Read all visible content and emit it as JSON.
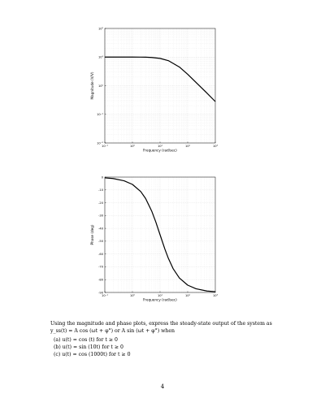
{
  "chart_data": [
    {
      "type": "line",
      "title": "",
      "xlabel": "Frequency (rad/sec)",
      "ylabel": "Magnitude (V/V)",
      "xscale": "log",
      "yscale": "log",
      "xlim": [
        0.1,
        1000
      ],
      "ylim": [
        0.01,
        100
      ],
      "x_ticks": [
        "10⁻¹",
        "10⁰",
        "10¹",
        "10²",
        "10³"
      ],
      "y_ticks": [
        "10⁻²",
        "10⁻¹",
        "10⁰",
        "10¹",
        "10²"
      ],
      "grid": true,
      "series": [
        {
          "x": [
            0.1,
            0.5,
            1,
            2,
            3,
            5,
            10,
            20,
            50,
            100,
            200,
            500,
            1000
          ],
          "y": [
            10,
            10,
            10,
            9.95,
            9.9,
            9.7,
            9.0,
            7.5,
            4.5,
            2.5,
            1.3,
            0.55,
            0.28
          ]
        }
      ],
      "color": "#000000"
    },
    {
      "type": "line",
      "title": "",
      "xlabel": "Frequency (rad/sec)",
      "ylabel": "Phase (deg)",
      "xscale": "log",
      "xlim": [
        0.1,
        1000
      ],
      "ylim": [
        -90,
        0
      ],
      "x_ticks": [
        "10⁻¹",
        "10⁰",
        "10¹",
        "10²",
        "10³"
      ],
      "y_ticks": [
        "0",
        "-10",
        "-20",
        "-30",
        "-40",
        "-50",
        "-60",
        "-70",
        "-80",
        "-90"
      ],
      "grid": true,
      "series": [
        {
          "x": [
            0.1,
            0.2,
            0.5,
            1,
            2,
            3,
            5,
            7,
            10,
            15,
            20,
            30,
            50,
            100,
            200,
            500,
            1000
          ],
          "y": [
            -0.6,
            -1.1,
            -2.9,
            -5.7,
            -11.3,
            -16.7,
            -26.6,
            -35,
            -45,
            -56.3,
            -63.4,
            -71.6,
            -78.7,
            -84.3,
            -87.1,
            -88.9,
            -89.4
          ]
        }
      ],
      "color": "#000000"
    }
  ],
  "text": {
    "intro_line1": "Using the magnitude and phase plots, express the steady-state output of the system as",
    "intro_line2": "y_ss(t) = A cos (ωt + φ°) or A sin (ωt + φ°) when",
    "items": [
      "(a)  u(t) = cos (t) for t ≥ 0",
      "(b)  u(t) = sin (10t) for t ≥ 0",
      "(c)  u(t) = cos (1000t) for t ≥ 0"
    ],
    "page_number": "4"
  }
}
